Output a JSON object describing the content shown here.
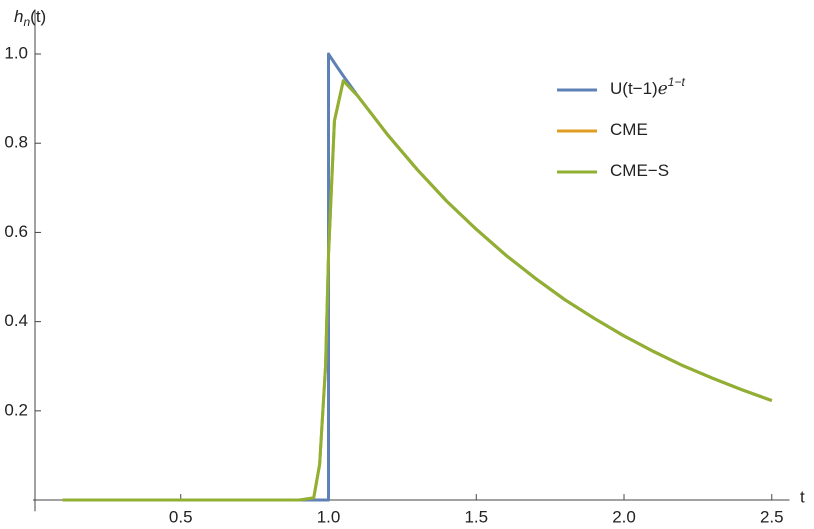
{
  "chart_data": {
    "type": "line",
    "y_label": "h",
    "y_label_sub": "n",
    "y_label_rest": "(t)",
    "x_label": "t",
    "x": [
      0.1,
      0.9,
      0.95,
      0.97,
      0.99,
      1.0,
      1.0,
      1.02,
      1.05,
      1.1,
      1.2,
      1.3,
      1.4,
      1.5,
      1.6,
      1.7,
      1.8,
      1.9,
      2.0,
      2.1,
      2.2,
      2.3,
      2.4,
      2.5
    ],
    "series": [
      {
        "name": "U(t−1)ℯ",
        "name_sup": "1−t",
        "color": "#5e81b5",
        "values": [
          0,
          0,
          0,
          0,
          0,
          0,
          1,
          0.98,
          0.951,
          0.905,
          0.819,
          0.741,
          0.67,
          0.607,
          0.549,
          0.497,
          0.449,
          0.407,
          0.368,
          0.333,
          0.301,
          0.273,
          0.247,
          0.223
        ]
      },
      {
        "name": "CME",
        "color": "#e19c24",
        "values": [
          0,
          0,
          0.005,
          0.08,
          0.3,
          0.55,
          0.55,
          0.85,
          0.94,
          0.905,
          0.819,
          0.741,
          0.67,
          0.607,
          0.549,
          0.497,
          0.449,
          0.407,
          0.368,
          0.333,
          0.301,
          0.273,
          0.247,
          0.223
        ]
      },
      {
        "name": "CME−S",
        "color": "#8fb032",
        "values": [
          0,
          0,
          0.005,
          0.08,
          0.3,
          0.55,
          0.55,
          0.85,
          0.94,
          0.905,
          0.819,
          0.741,
          0.67,
          0.607,
          0.549,
          0.497,
          0.449,
          0.407,
          0.368,
          0.333,
          0.301,
          0.273,
          0.247,
          0.223
        ]
      }
    ],
    "xlim": [
      0,
      2.56
    ],
    "ylim": [
      -0.025,
      1.1
    ],
    "xticks": [
      0.5,
      {
        "value": 1,
        "label": "1.0"
      },
      1.5,
      {
        "value": 2,
        "label": "2.0"
      },
      2.5
    ],
    "yticks": [
      0.2,
      0.4,
      0.6,
      0.8,
      {
        "value": 1,
        "label": "1.0"
      }
    ],
    "legend": "top-right"
  }
}
